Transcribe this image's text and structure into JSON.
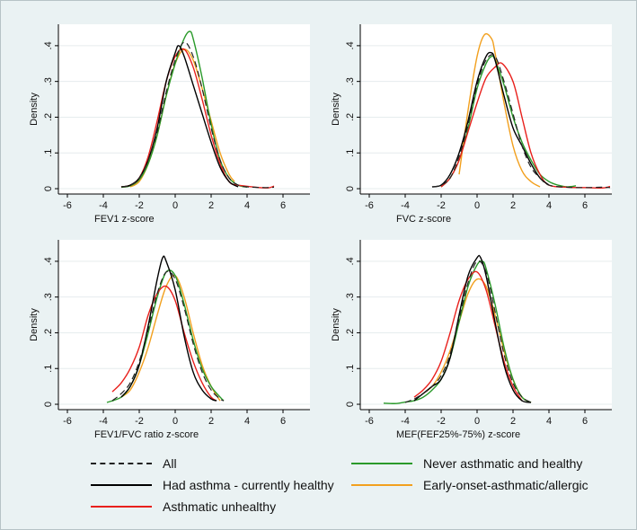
{
  "colors": {
    "All": "#222222",
    "Had asthma - currently healthy": "#000000",
    "Asthmatic unhealthy": "#e8201c",
    "Never asthmatic and healthy": "#2a9a2a",
    "Early-onset-asthmatic/allergic": "#f2a01e"
  },
  "legend": {
    "items": [
      {
        "label": "All",
        "series": "All",
        "style": "dashed"
      },
      {
        "label": "Had asthma - currently healthy",
        "series": "Had asthma - currently healthy",
        "style": "solid"
      },
      {
        "label": "Asthmatic unhealthy",
        "series": "Asthmatic unhealthy",
        "style": "solid"
      },
      {
        "label": "Never asthmatic and healthy",
        "series": "Never asthmatic and healthy",
        "style": "solid"
      },
      {
        "label": "Early-onset-asthmatic/allergic",
        "series": "Early-onset-asthmatic/allergic",
        "style": "solid"
      }
    ]
  },
  "chart_data": [
    {
      "type": "line",
      "title": "",
      "xlabel": "FEV1 z-score",
      "ylabel": "Density",
      "xlim": [
        -6.5,
        7.5
      ],
      "ylim": [
        -0.015,
        0.46
      ],
      "xticks": [
        -6,
        -4,
        -2,
        0,
        2,
        4,
        6
      ],
      "xtick_labels": [
        "-6",
        "-4",
        "-2",
        "0",
        "2",
        "4",
        "6"
      ],
      "yticks": [
        0,
        0.1,
        0.2,
        0.3,
        0.4
      ],
      "ytick_labels": [
        "0",
        ".1",
        ".2",
        ".3",
        ".4"
      ],
      "series": [
        {
          "name": "All",
          "x": [
            -3,
            -2.5,
            -2,
            -1.5,
            -1,
            -0.5,
            0,
            0.5,
            1,
            1.5,
            2,
            2.5,
            3,
            3.5,
            4,
            5,
            5.5
          ],
          "y": [
            0.005,
            0.01,
            0.03,
            0.08,
            0.16,
            0.27,
            0.36,
            0.41,
            0.37,
            0.28,
            0.17,
            0.08,
            0.03,
            0.01,
            0.005,
            0.003,
            0.004
          ]
        },
        {
          "name": "Had asthma - currently healthy",
          "x": [
            -3,
            -2.5,
            -2,
            -1.5,
            -1,
            -0.5,
            0,
            0.2,
            0.5,
            1,
            1.5,
            2,
            2.5,
            3,
            3.5
          ],
          "y": [
            0.005,
            0.01,
            0.03,
            0.08,
            0.17,
            0.3,
            0.38,
            0.4,
            0.37,
            0.29,
            0.21,
            0.13,
            0.06,
            0.02,
            0.005
          ]
        },
        {
          "name": "Asthmatic unhealthy",
          "x": [
            -3,
            -2.5,
            -2,
            -1.5,
            -1,
            -0.5,
            0,
            0.5,
            1,
            1.5,
            2,
            2.5,
            3,
            3.5,
            5,
            5.5
          ],
          "y": [
            0.005,
            0.01,
            0.03,
            0.09,
            0.19,
            0.3,
            0.37,
            0.39,
            0.34,
            0.25,
            0.15,
            0.07,
            0.02,
            0.01,
            0.002,
            0.007
          ]
        },
        {
          "name": "Never asthmatic and healthy",
          "x": [
            -3,
            -2.5,
            -2,
            -1.5,
            -1,
            -0.5,
            0,
            0.5,
            0.8,
            1,
            1.5,
            2,
            2.5,
            3,
            3.5,
            4
          ],
          "y": [
            0.004,
            0.008,
            0.025,
            0.07,
            0.15,
            0.26,
            0.35,
            0.42,
            0.44,
            0.42,
            0.31,
            0.18,
            0.08,
            0.03,
            0.01,
            0.004
          ]
        },
        {
          "name": "Early-onset-asthmatic/allergic",
          "x": [
            -2.5,
            -2,
            -1.5,
            -1,
            -0.5,
            0,
            0.5,
            1,
            1.5,
            2,
            2.5,
            3,
            3.3
          ],
          "y": [
            0.005,
            0.02,
            0.07,
            0.15,
            0.26,
            0.35,
            0.39,
            0.36,
            0.28,
            0.19,
            0.1,
            0.04,
            0.02
          ]
        }
      ]
    },
    {
      "type": "line",
      "title": "",
      "xlabel": "FVC z-score",
      "ylabel": "Density",
      "xlim": [
        -6.5,
        7.5
      ],
      "ylim": [
        -0.015,
        0.46
      ],
      "xticks": [
        -6,
        -4,
        -2,
        0,
        2,
        4,
        6
      ],
      "xtick_labels": [
        "-6",
        "-4",
        "-2",
        "0",
        "2",
        "4",
        "6"
      ],
      "yticks": [
        0,
        0.1,
        0.2,
        0.3,
        0.4
      ],
      "ytick_labels": [
        "0",
        ".1",
        ".2",
        ".3",
        ".4"
      ],
      "series": [
        {
          "name": "All",
          "x": [
            -2.5,
            -2,
            -1.5,
            -1,
            -0.5,
            0,
            0.5,
            1,
            1.5,
            2,
            2.5,
            3,
            3.5,
            4,
            5,
            6,
            7,
            7.4
          ],
          "y": [
            0.005,
            0.01,
            0.03,
            0.09,
            0.18,
            0.29,
            0.36,
            0.37,
            0.3,
            0.21,
            0.12,
            0.06,
            0.03,
            0.01,
            0.004,
            0.003,
            0.004,
            0.003
          ]
        },
        {
          "name": "Had asthma - currently healthy",
          "x": [
            -2.5,
            -2,
            -1.5,
            -1,
            -0.5,
            0,
            0.5,
            0.8,
            1,
            1.5,
            2,
            2.5,
            3,
            3.5,
            4
          ],
          "y": [
            0.005,
            0.01,
            0.04,
            0.1,
            0.19,
            0.3,
            0.37,
            0.38,
            0.36,
            0.26,
            0.17,
            0.12,
            0.07,
            0.03,
            0.01
          ]
        },
        {
          "name": "Asthmatic unhealthy",
          "x": [
            -2,
            -1.5,
            -1,
            -0.5,
            0,
            0.5,
            1,
            1.4,
            2,
            2.5,
            3,
            3.5,
            4,
            5,
            6,
            7,
            7.4
          ],
          "y": [
            0.005,
            0.03,
            0.08,
            0.16,
            0.24,
            0.31,
            0.34,
            0.35,
            0.3,
            0.2,
            0.1,
            0.04,
            0.01,
            0.004,
            0.003,
            0.002,
            0.006
          ]
        },
        {
          "name": "Never asthmatic and healthy",
          "x": [
            -2,
            -1.5,
            -1,
            -0.5,
            0,
            0.5,
            0.8,
            1,
            1.5,
            2,
            2.5,
            3,
            3.5,
            4,
            4.5,
            5,
            5.5
          ],
          "y": [
            0.005,
            0.03,
            0.08,
            0.17,
            0.28,
            0.35,
            0.37,
            0.36,
            0.29,
            0.2,
            0.13,
            0.08,
            0.04,
            0.02,
            0.01,
            0.005,
            0.008
          ]
        },
        {
          "name": "Early-onset-asthmatic/allergic",
          "x": [
            -1,
            -0.5,
            0,
            0.4,
            0.8,
            1,
            1.5,
            2,
            2.5,
            3,
            3.5
          ],
          "y": [
            0.04,
            0.22,
            0.37,
            0.43,
            0.42,
            0.38,
            0.24,
            0.12,
            0.05,
            0.02,
            0.005
          ]
        }
      ]
    },
    {
      "type": "line",
      "title": "",
      "xlabel": "FEV1/FVC ratio z-score",
      "ylabel": "Density",
      "xlim": [
        -6.5,
        7.5
      ],
      "ylim": [
        -0.015,
        0.46
      ],
      "xticks": [
        -6,
        -4,
        -2,
        0,
        2,
        4,
        6
      ],
      "xtick_labels": [
        "-6",
        "-4",
        "-2",
        "0",
        "2",
        "4",
        "6"
      ],
      "yticks": [
        0,
        0.1,
        0.2,
        0.3,
        0.4
      ],
      "ytick_labels": [
        "0",
        ".1",
        ".2",
        ".3",
        ".4"
      ],
      "series": [
        {
          "name": "All",
          "x": [
            -3.5,
            -3,
            -2.5,
            -2,
            -1.5,
            -1,
            -0.5,
            0,
            0.5,
            1,
            1.5,
            2,
            2.5,
            2.7
          ],
          "y": [
            0.01,
            0.03,
            0.06,
            0.12,
            0.21,
            0.31,
            0.37,
            0.35,
            0.27,
            0.17,
            0.09,
            0.04,
            0.015,
            0.01
          ]
        },
        {
          "name": "Had asthma - currently healthy",
          "x": [
            -3,
            -2.5,
            -2,
            -1.5,
            -1,
            -0.7,
            -0.5,
            0,
            0.5,
            1,
            1.5,
            2,
            2.3
          ],
          "y": [
            0.02,
            0.05,
            0.11,
            0.22,
            0.35,
            0.41,
            0.4,
            0.32,
            0.19,
            0.09,
            0.04,
            0.015,
            0.01
          ]
        },
        {
          "name": "Asthmatic unhealthy",
          "x": [
            -3.5,
            -3,
            -2.5,
            -2,
            -1.5,
            -1,
            -0.5,
            0,
            0.5,
            1,
            1.5,
            2,
            2.3
          ],
          "y": [
            0.035,
            0.06,
            0.1,
            0.16,
            0.25,
            0.31,
            0.33,
            0.29,
            0.2,
            0.12,
            0.06,
            0.02,
            0.01
          ]
        },
        {
          "name": "Never asthmatic and healthy",
          "x": [
            -3.8,
            -3,
            -2.5,
            -2,
            -1.5,
            -1,
            -0.5,
            0,
            0.5,
            1,
            1.5,
            2,
            2.5,
            2.7
          ],
          "y": [
            0.005,
            0.02,
            0.05,
            0.11,
            0.2,
            0.3,
            0.37,
            0.36,
            0.28,
            0.18,
            0.1,
            0.05,
            0.02,
            0.01
          ]
        },
        {
          "name": "Early-onset-asthmatic/allergic",
          "x": [
            -3,
            -2.5,
            -2,
            -1.5,
            -1,
            -0.5,
            0,
            0.5,
            1,
            1.5,
            2,
            2.5
          ],
          "y": [
            0.02,
            0.04,
            0.09,
            0.16,
            0.25,
            0.33,
            0.36,
            0.3,
            0.2,
            0.11,
            0.05,
            0.01
          ]
        }
      ]
    },
    {
      "type": "line",
      "title": "",
      "xlabel": "MEF(FEF25%-75%) z-score",
      "ylabel": "Density",
      "xlim": [
        -6.5,
        7.5
      ],
      "ylim": [
        -0.015,
        0.46
      ],
      "xticks": [
        -6,
        -4,
        -2,
        0,
        2,
        4,
        6
      ],
      "xtick_labels": [
        "-6",
        "-4",
        "-2",
        "0",
        "2",
        "4",
        "6"
      ],
      "yticks": [
        0,
        0.1,
        0.2,
        0.3,
        0.4
      ],
      "ytick_labels": [
        "0",
        ".1",
        ".2",
        ".3",
        ".4"
      ],
      "series": [
        {
          "name": "All",
          "x": [
            -4,
            -3.5,
            -3,
            -2.5,
            -2,
            -1.5,
            -1,
            -0.5,
            0,
            0.5,
            1,
            1.5,
            2,
            2.5,
            3
          ],
          "y": [
            0.005,
            0.015,
            0.03,
            0.05,
            0.08,
            0.14,
            0.24,
            0.34,
            0.4,
            0.37,
            0.26,
            0.14,
            0.06,
            0.02,
            0.005
          ]
        },
        {
          "name": "Had asthma - currently healthy",
          "x": [
            -3.5,
            -3,
            -2.5,
            -2,
            -1.5,
            -1,
            -0.5,
            0,
            0.2,
            0.5,
            1,
            1.5,
            2,
            2.5,
            3
          ],
          "y": [
            0.01,
            0.03,
            0.05,
            0.07,
            0.13,
            0.25,
            0.36,
            0.41,
            0.41,
            0.36,
            0.23,
            0.11,
            0.04,
            0.01,
            0.005
          ]
        },
        {
          "name": "Asthmatic unhealthy",
          "x": [
            -3.5,
            -3,
            -2.5,
            -2,
            -1.5,
            -1,
            -0.5,
            0,
            0.5,
            1,
            1.5,
            2,
            2.5
          ],
          "y": [
            0.02,
            0.04,
            0.07,
            0.12,
            0.2,
            0.29,
            0.35,
            0.37,
            0.32,
            0.22,
            0.12,
            0.05,
            0.01
          ]
        },
        {
          "name": "Never asthmatic and healthy",
          "x": [
            -5.2,
            -4.5,
            -4,
            -3.5,
            -3,
            -2.5,
            -2,
            -1.5,
            -1,
            -0.5,
            0,
            0.3,
            0.5,
            1,
            1.5,
            2,
            2.5,
            3
          ],
          "y": [
            0.003,
            0.002,
            0.006,
            0.01,
            0.02,
            0.04,
            0.07,
            0.13,
            0.23,
            0.33,
            0.39,
            0.4,
            0.38,
            0.28,
            0.16,
            0.07,
            0.02,
            0.005
          ]
        },
        {
          "name": "Early-onset-asthmatic/allergic",
          "x": [
            -3,
            -2.5,
            -2,
            -1.5,
            -1,
            -0.5,
            0,
            0.5,
            1,
            1.5,
            2,
            2.5,
            3
          ],
          "y": [
            0.03,
            0.05,
            0.09,
            0.15,
            0.23,
            0.31,
            0.35,
            0.33,
            0.25,
            0.15,
            0.07,
            0.02,
            0.005
          ]
        }
      ]
    }
  ]
}
